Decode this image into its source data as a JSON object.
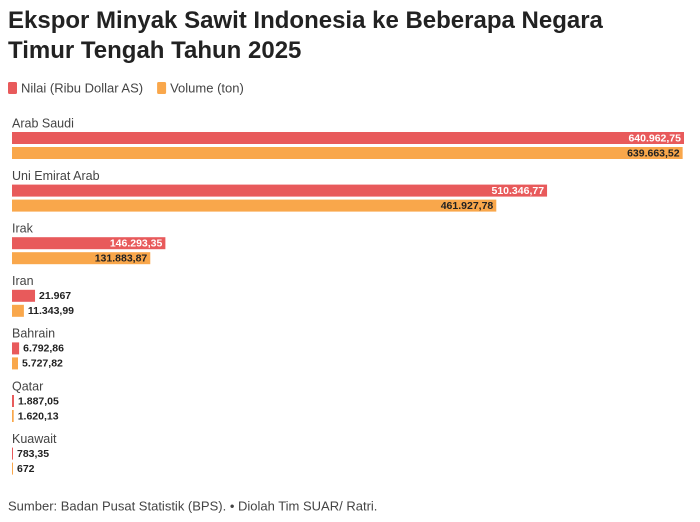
{
  "chart_data": {
    "type": "bar",
    "orientation": "horizontal",
    "title": "Ekspor Minyak Sawit Indonesia ke Beberapa Negara Timur Tengah Tahun 2025",
    "categories": [
      "Arab Saudi",
      "Uni Emirat Arab",
      "Irak",
      "Iran",
      "Bahrain",
      "Qatar",
      "Kuawait"
    ],
    "series": [
      {
        "name": "Nilai (Ribu Dollar AS)",
        "color": "#e85a5b",
        "values": [
          640962.75,
          510346.77,
          146293.35,
          21967,
          6792.86,
          1887.05,
          783.35
        ],
        "value_labels": [
          "640.962,75",
          "510.346,77",
          "146.293,35",
          "21.967",
          "6.792,86",
          "1.887,05",
          "783,35"
        ]
      },
      {
        "name": "Volume (ton)",
        "color": "#f9a74b",
        "values": [
          639663.52,
          461927.78,
          131883.87,
          11343.99,
          5727.82,
          1620.13,
          672
        ],
        "value_labels": [
          "639.663,52",
          "461.927,78",
          "131.883,87",
          "11.343,99",
          "5.727,82",
          "1.620,13",
          "672"
        ]
      }
    ],
    "source": "Sumber: Badan Pusat Statistik (BPS). • Diolah Tim SUAR/ Ratri."
  }
}
